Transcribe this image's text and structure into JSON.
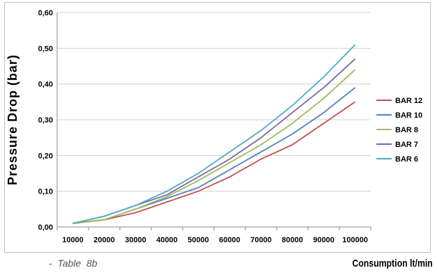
{
  "chart_data": {
    "type": "line",
    "title": "",
    "ylabel": "Pressure Drop (bar)",
    "xlabel": "Consumption lt/min",
    "caption": "-  Table  8b",
    "ylim": [
      0,
      0.6
    ],
    "y_ticks": [
      "0,00",
      "0,10",
      "0,20",
      "0,30",
      "0,40",
      "0,50",
      "0,60"
    ],
    "y_tick_values": [
      0,
      0.1,
      0.2,
      0.3,
      0.4,
      0.5,
      0.6
    ],
    "categories": [
      "10000",
      "20000",
      "30000",
      "40000",
      "50000",
      "60000",
      "70000",
      "80000",
      "90000",
      "100000"
    ],
    "grid": "horizontal",
    "legend_position": "right",
    "series": [
      {
        "name": "BAR 12",
        "color": "#c0504d",
        "values": [
          0.01,
          0.02,
          0.04,
          0.07,
          0.1,
          0.14,
          0.19,
          0.23,
          0.29,
          0.35
        ]
      },
      {
        "name": "BAR 10",
        "color": "#4f81bd",
        "values": [
          0.01,
          0.02,
          0.05,
          0.08,
          0.11,
          0.16,
          0.21,
          0.26,
          0.32,
          0.39
        ]
      },
      {
        "name": "BAR 8",
        "color": "#9bbb59",
        "values": [
          0.01,
          0.02,
          0.05,
          0.085,
          0.13,
          0.18,
          0.23,
          0.29,
          0.36,
          0.44
        ]
      },
      {
        "name": "BAR 7",
        "color": "#8064a2",
        "values": [
          0.01,
          0.03,
          0.06,
          0.09,
          0.14,
          0.19,
          0.25,
          0.32,
          0.39,
          0.47
        ]
      },
      {
        "name": "BAR 6",
        "color": "#4bacc6",
        "values": [
          0.01,
          0.03,
          0.06,
          0.1,
          0.15,
          0.21,
          0.27,
          0.34,
          0.42,
          0.51
        ]
      }
    ]
  }
}
